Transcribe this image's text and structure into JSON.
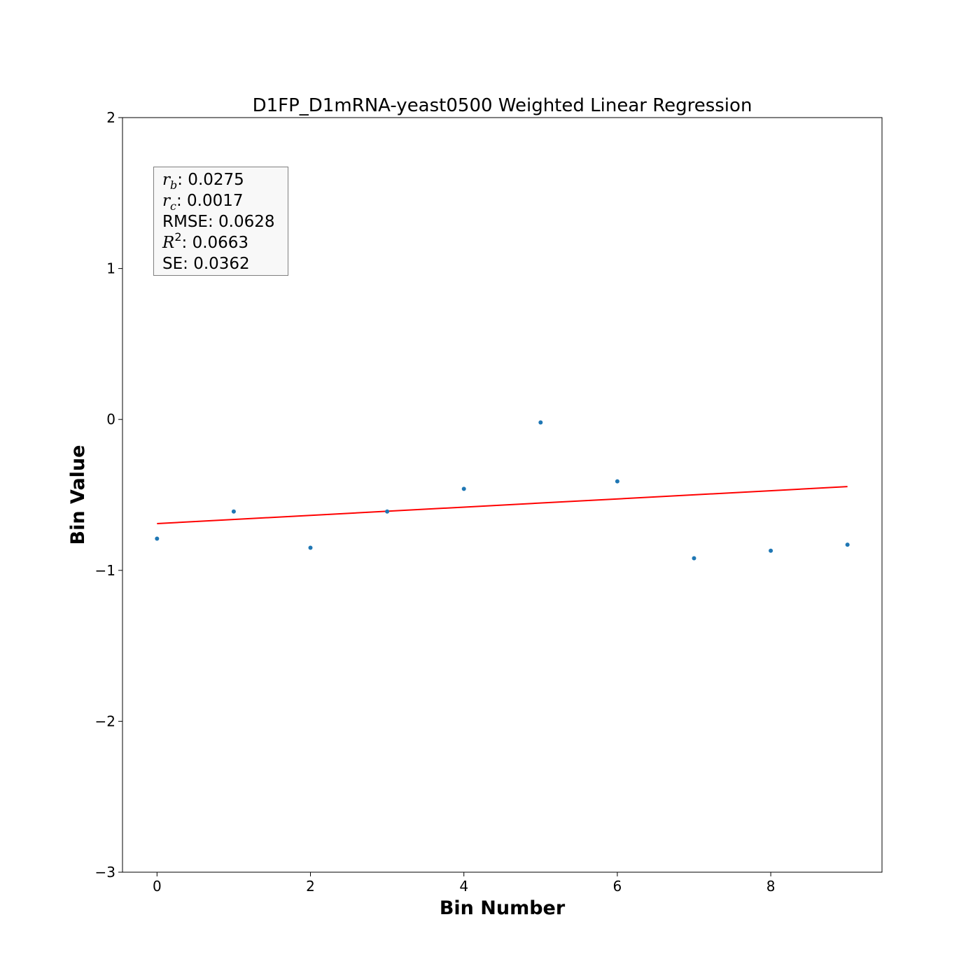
{
  "chart_data": {
    "type": "scatter",
    "title": "D1FP_D1mRNA-yeast0500 Weighted Linear Regression",
    "xlabel": "Bin Number",
    "ylabel": "Bin Value",
    "xlim": [
      -0.45,
      9.45
    ],
    "ylim": [
      -3,
      2
    ],
    "x_ticks": [
      0,
      2,
      4,
      6,
      8
    ],
    "y_ticks": [
      2,
      1,
      0,
      -1,
      -2,
      -3
    ],
    "x_tick_labels": [
      "0",
      "2",
      "4",
      "6",
      "8"
    ],
    "y_tick_labels": [
      "2",
      "1",
      "0",
      "−1",
      "−2",
      "−3"
    ],
    "grid": false,
    "series": [
      {
        "x": [
          0,
          1,
          2,
          3,
          4,
          5,
          6,
          7,
          8,
          9
        ],
        "y": [
          -0.79,
          -0.61,
          -0.85,
          -0.61,
          -0.46,
          -0.02,
          -0.41,
          -0.92,
          -0.87,
          -0.83
        ],
        "color": "#1f77b4"
      }
    ],
    "fit_line": {
      "x": [
        0,
        9
      ],
      "y": [
        -0.69,
        -0.445
      ],
      "color": "#ff0000"
    },
    "stats_box": {
      "placement": "top-left",
      "rows": [
        {
          "symbol": "r",
          "sub": "b",
          "value": ": 0.0275"
        },
        {
          "symbol": "r",
          "sub": "c",
          "value": ": 0.0017"
        },
        {
          "label": "RMSE",
          "value": ": 0.0628"
        },
        {
          "symbol": "R",
          "sup": "2",
          "value": ": 0.0663"
        },
        {
          "label": "SE",
          "value": ": 0.0362"
        }
      ]
    }
  }
}
